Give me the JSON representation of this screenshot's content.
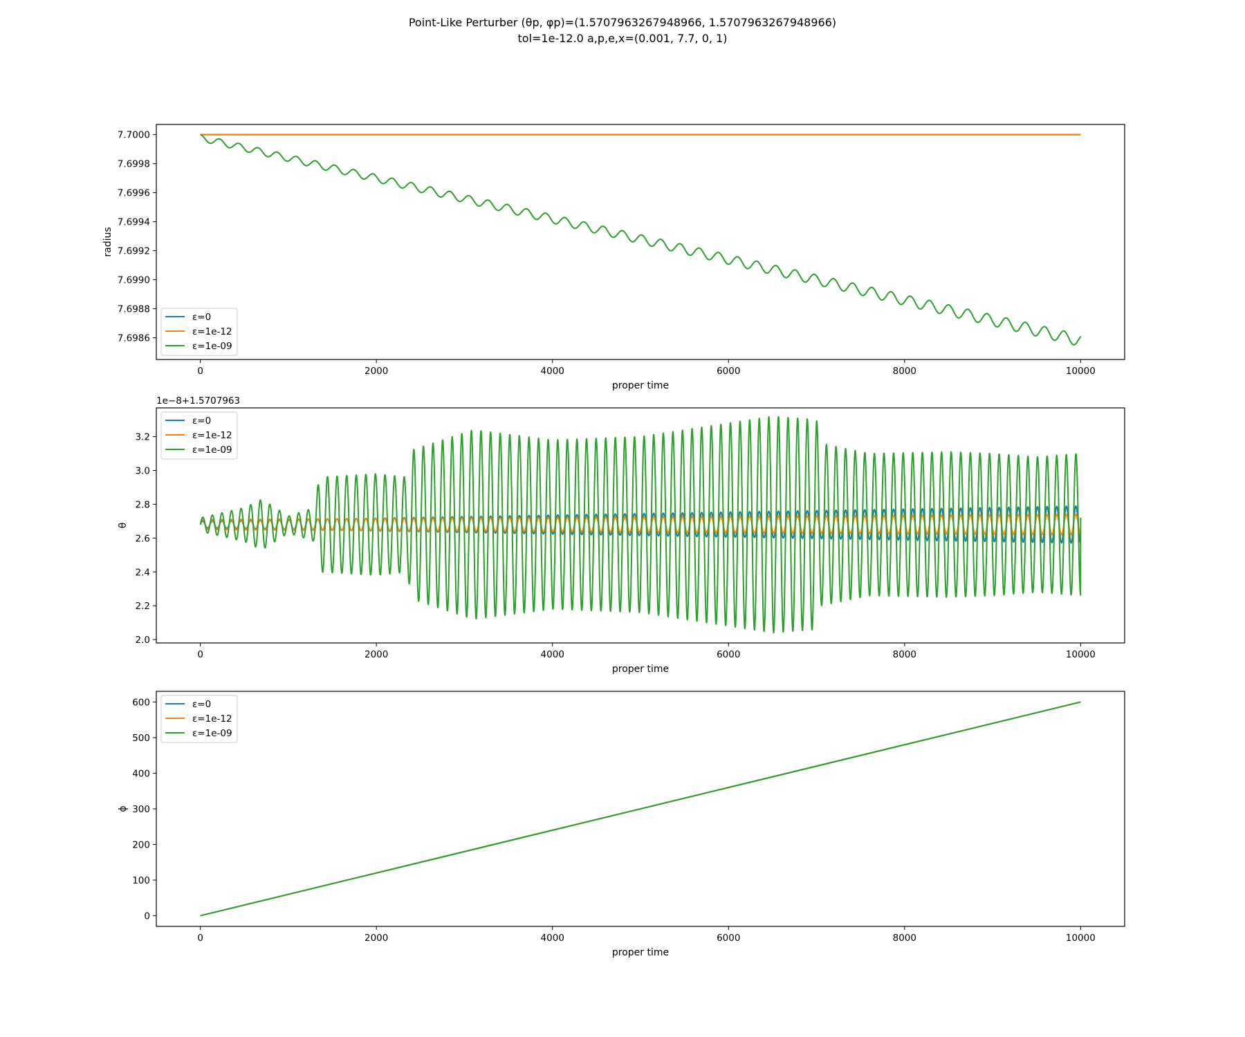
{
  "figure": {
    "title_line1": "Point-Like Perturber (θp, φp)=(1.5707963267948966, 1.5707963267948966)",
    "title_line2": "tol=1e-12.0 a,p,e,x=(0.001, 7.7, 0, 1)"
  },
  "legend": [
    {
      "label": "ε=0",
      "color": "#1f77b4"
    },
    {
      "label": "ε=1e-12",
      "color": "#ff7f0e"
    },
    {
      "label": "ε=1e-09",
      "color": "#2ca02c"
    }
  ],
  "chart_data": [
    {
      "type": "line",
      "xlabel": "proper time",
      "ylabel": "radius",
      "offset_text": "",
      "xlim": [
        -500,
        10500
      ],
      "ylim": [
        7.69845,
        7.70007
      ],
      "xticks": [
        0,
        2000,
        4000,
        6000,
        8000,
        10000
      ],
      "yticks": [
        7.6986,
        7.6988,
        7.699,
        7.6992,
        7.6994,
        7.6996,
        7.6998,
        7.7
      ],
      "yticklabels": [
        "7.6986",
        "7.6988",
        "7.6990",
        "7.6992",
        "7.6994",
        "7.6996",
        "7.6998",
        "7.7000"
      ],
      "legend_position": "lower left",
      "grid": false,
      "series": [
        {
          "name": "ε=0",
          "color": "#1f77b4",
          "model": "constant",
          "value": 7.7,
          "x_range": [
            0,
            10000
          ]
        },
        {
          "name": "ε=1e-12",
          "color": "#ff7f0e",
          "model": "constant",
          "value": 7.7,
          "x_range": [
            0,
            10000
          ]
        },
        {
          "name": "ε=1e-09",
          "color": "#2ca02c",
          "model": "decaying-oscillation",
          "x_range": [
            0,
            10000
          ],
          "start_value": 7.7,
          "trend_end_value": 7.69862,
          "oscillation_amplitude": 8e-05,
          "oscillation_period": 218,
          "end_value": 7.6986
        }
      ]
    },
    {
      "type": "line",
      "xlabel": "proper time",
      "ylabel": "θ",
      "offset_text": "1e−8+1.5707963",
      "xlim": [
        -500,
        10500
      ],
      "ylim": [
        1.98,
        3.37
      ],
      "xticks": [
        0,
        2000,
        4000,
        6000,
        8000,
        10000
      ],
      "yticks": [
        2.0,
        2.2,
        2.4,
        2.6,
        2.8,
        3.0,
        3.2
      ],
      "yticklabels": [
        "2.0",
        "2.2",
        "2.4",
        "2.6",
        "2.8",
        "3.0",
        "3.2"
      ],
      "legend_position": "upper left",
      "grid": false,
      "series": [
        {
          "name": "ε=0",
          "color": "#1f77b4",
          "model": "oscillation",
          "x_range": [
            0,
            10000
          ],
          "center": 2.68,
          "amplitude_start": 0.02,
          "amplitude_end": 0.11,
          "oscillation_period": 109
        },
        {
          "name": "ε=1e-12",
          "color": "#ff7f0e",
          "model": "oscillation",
          "x_range": [
            0,
            10000
          ],
          "center": 2.68,
          "amplitude_start": 0.03,
          "amplitude_end": 0.06,
          "oscillation_period": 109
        },
        {
          "name": "ε=1e-09",
          "color": "#2ca02c",
          "model": "oscillation-envelope",
          "x_range": [
            0,
            10000
          ],
          "center": 2.68,
          "oscillation_period": 109,
          "envelope": [
            [
              0,
              0.04
            ],
            [
              500,
              0.1
            ],
            [
              700,
              0.15
            ],
            [
              1000,
              0.05
            ],
            [
              1300,
              0.1
            ],
            [
              1350,
              0.28
            ],
            [
              2000,
              0.3
            ],
            [
              2350,
              0.28
            ],
            [
              2400,
              0.44
            ],
            [
              3100,
              0.56
            ],
            [
              4000,
              0.5
            ],
            [
              5000,
              0.52
            ],
            [
              6000,
              0.6
            ],
            [
              6500,
              0.64
            ],
            [
              7000,
              0.62
            ],
            [
              7050,
              0.48
            ],
            [
              7600,
              0.42
            ],
            [
              8500,
              0.43
            ],
            [
              9000,
              0.42
            ],
            [
              9500,
              0.4
            ],
            [
              10000,
              0.42
            ]
          ],
          "end_value": 2.72
        }
      ]
    },
    {
      "type": "line",
      "xlabel": "proper time",
      "ylabel": "ϕ",
      "offset_text": "",
      "xlim": [
        -500,
        10500
      ],
      "ylim": [
        -30,
        630
      ],
      "xticks": [
        0,
        2000,
        4000,
        6000,
        8000,
        10000
      ],
      "yticks": [
        0,
        100,
        200,
        300,
        400,
        500,
        600
      ],
      "yticklabels": [
        "0",
        "100",
        "200",
        "300",
        "400",
        "500",
        "600"
      ],
      "legend_position": "upper left",
      "grid": false,
      "series": [
        {
          "name": "ε=0",
          "color": "#1f77b4",
          "model": "linear",
          "x": [
            0,
            10000
          ],
          "y": [
            0,
            600
          ]
        },
        {
          "name": "ε=1e-12",
          "color": "#ff7f0e",
          "model": "linear",
          "x": [
            0,
            10000
          ],
          "y": [
            0,
            600
          ]
        },
        {
          "name": "ε=1e-09",
          "color": "#2ca02c",
          "model": "linear",
          "x": [
            0,
            10000
          ],
          "y": [
            0,
            600
          ]
        }
      ]
    }
  ]
}
